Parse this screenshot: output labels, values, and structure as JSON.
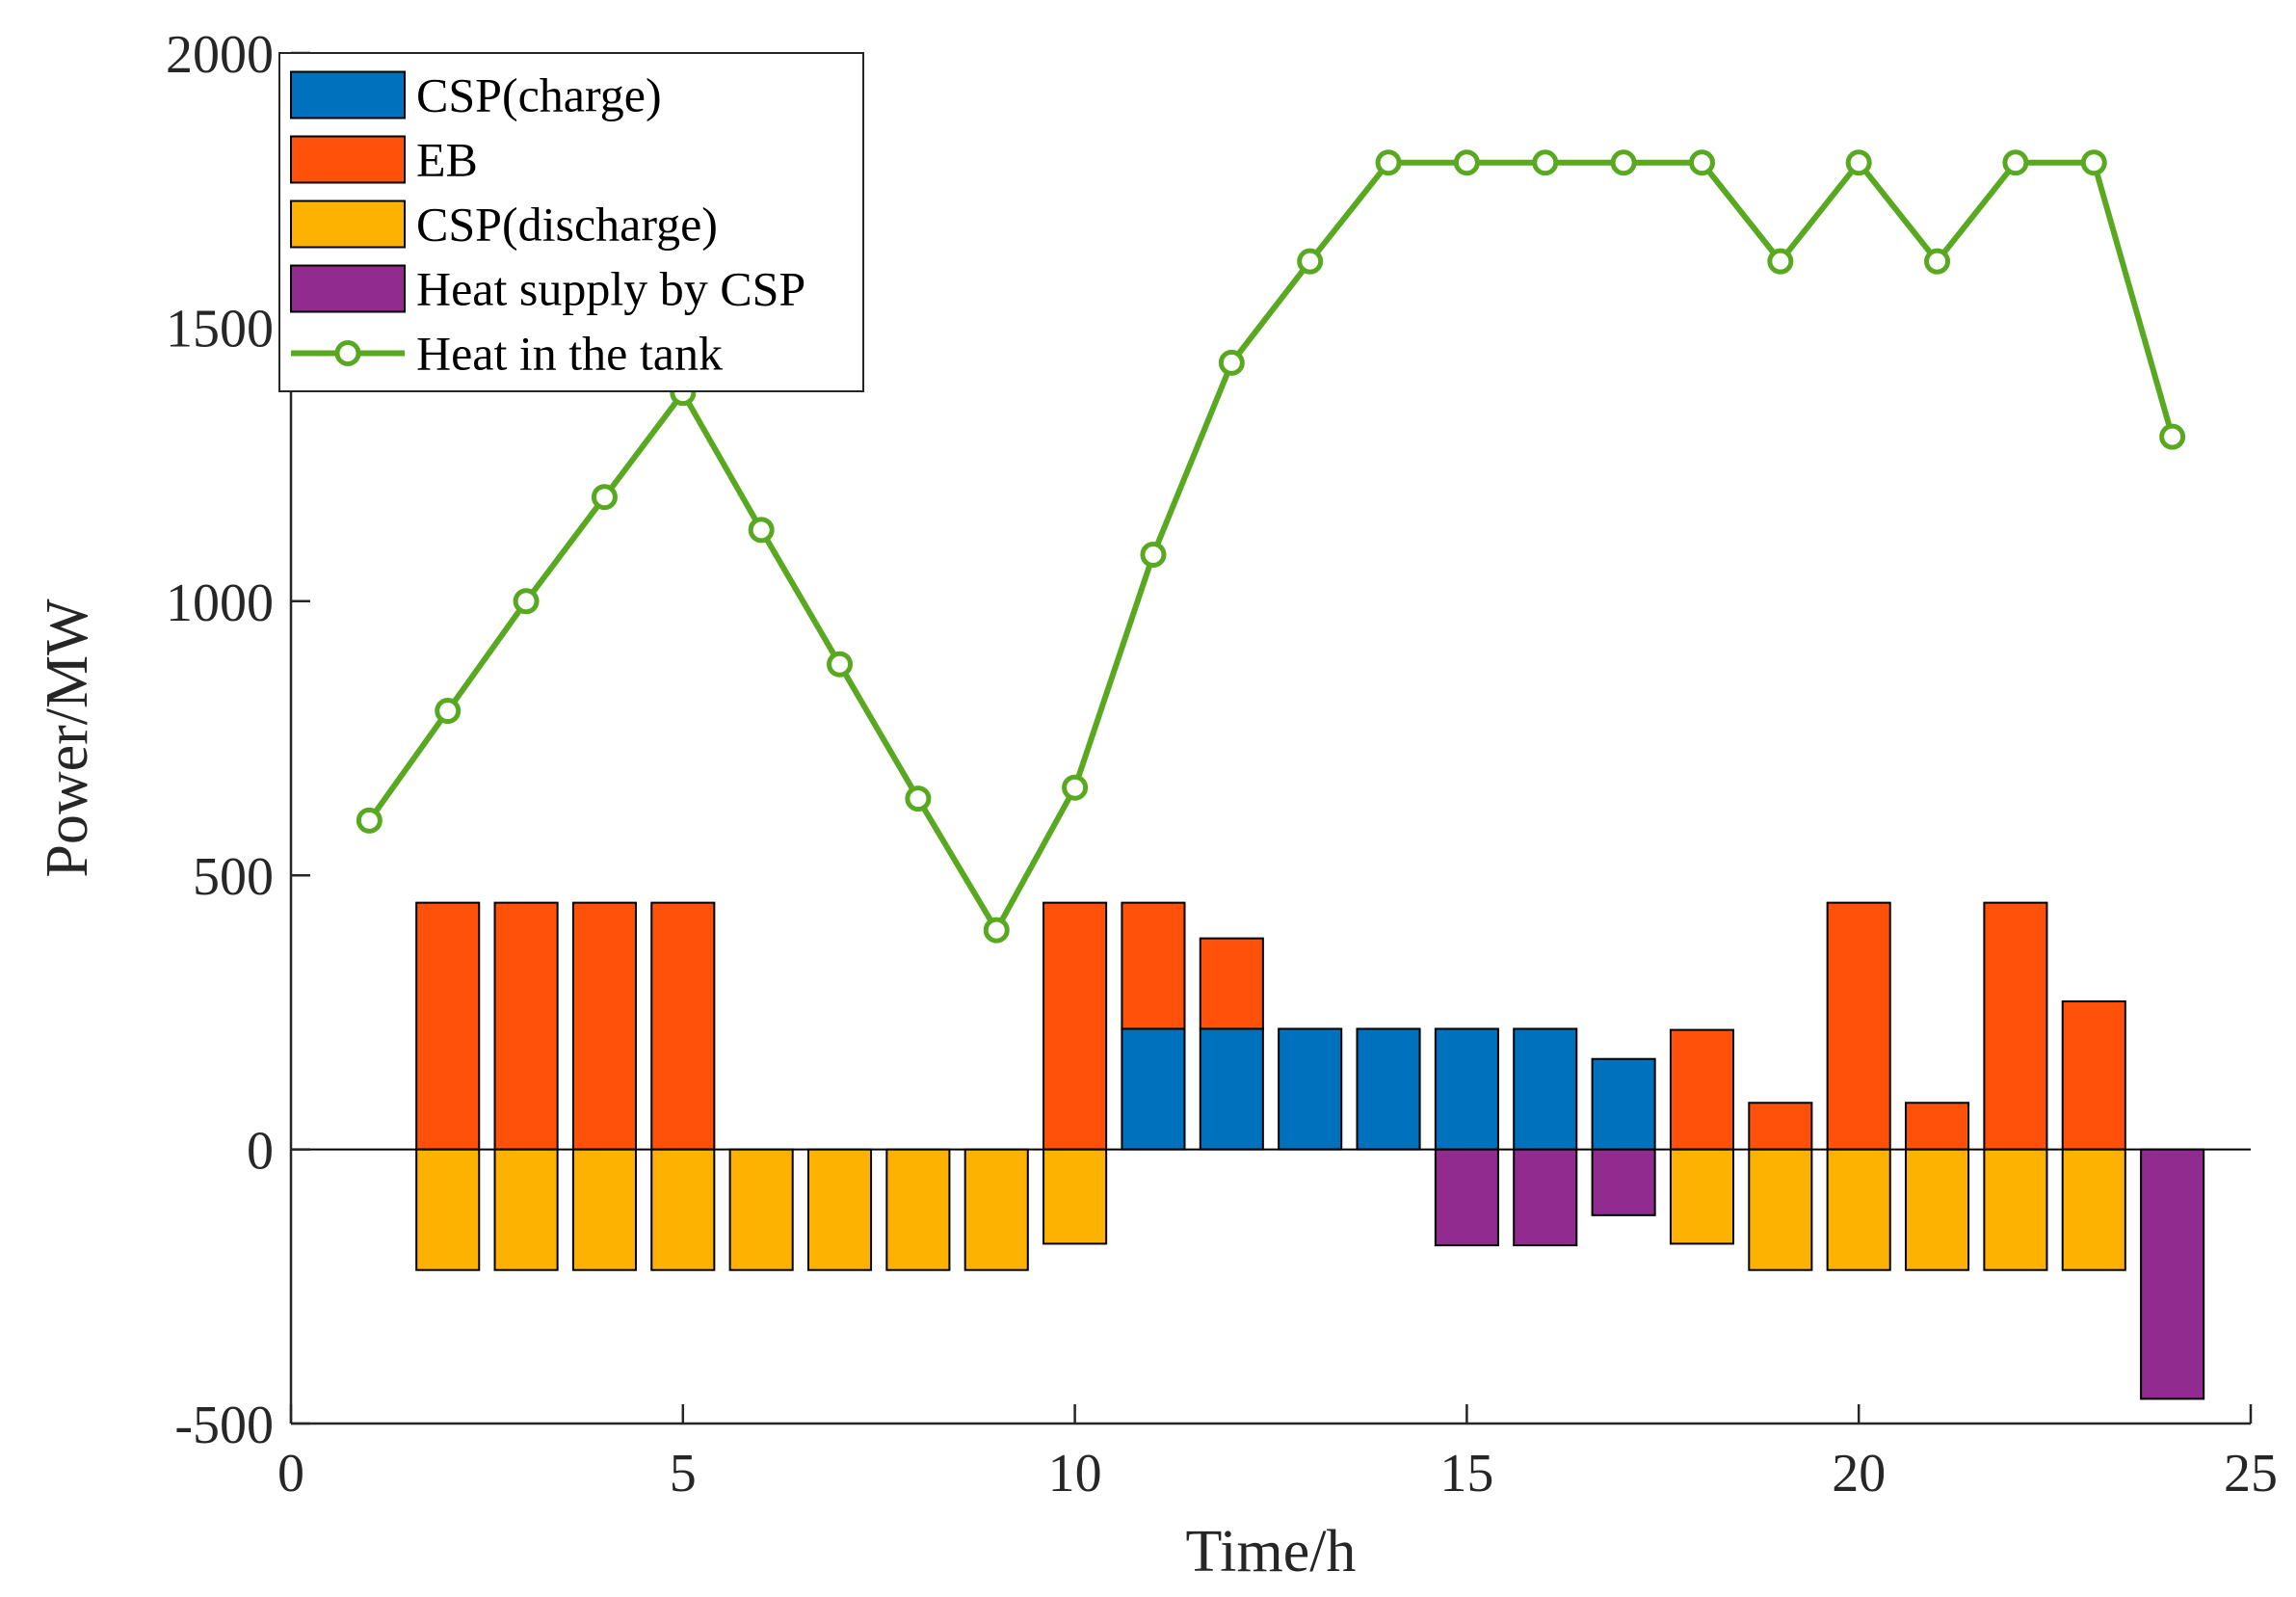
{
  "chart_data": {
    "type": "bar",
    "xlabel": "Time/h",
    "ylabel": "Power/MW",
    "xlim": [
      0,
      25
    ],
    "ylim": [
      -500,
      2000
    ],
    "xticks": [
      0,
      5,
      10,
      15,
      20,
      25
    ],
    "yticks": [
      -500,
      0,
      500,
      1000,
      1500,
      2000
    ],
    "grid": false,
    "legend_position": "top-left",
    "x": [
      1,
      2,
      3,
      4,
      5,
      6,
      7,
      8,
      9,
      10,
      11,
      12,
      13,
      14,
      15,
      16,
      17,
      18,
      19,
      20,
      21,
      22,
      23,
      24
    ],
    "series": [
      {
        "name": "CSP(charge)",
        "type": "bar",
        "color": "#0072BD",
        "values": [
          0,
          0,
          0,
          0,
          0,
          0,
          0,
          0,
          0,
          0,
          220,
          220,
          220,
          220,
          220,
          220,
          165,
          0,
          0,
          0,
          0,
          0,
          0,
          0
        ]
      },
      {
        "name": "EB",
        "type": "bar",
        "color": "#FF5109",
        "values": [
          0,
          450,
          450,
          450,
          450,
          0,
          0,
          0,
          0,
          450,
          230,
          165,
          0,
          0,
          0,
          0,
          0,
          218,
          85,
          450,
          85,
          450,
          270,
          0
        ]
      },
      {
        "name": "CSP(discharge)",
        "type": "bar",
        "color": "#FDB100",
        "values": [
          0,
          -220,
          -220,
          -220,
          -220,
          -220,
          -220,
          -220,
          -220,
          -172,
          0,
          0,
          0,
          0,
          0,
          0,
          0,
          -172,
          -220,
          -220,
          -220,
          -220,
          -220,
          0
        ]
      },
      {
        "name": "Heat supply by CSP",
        "type": "bar",
        "color": "#922B8F",
        "values": [
          0,
          0,
          0,
          0,
          0,
          0,
          0,
          0,
          0,
          0,
          0,
          0,
          0,
          0,
          -175,
          -175,
          -120,
          0,
          0,
          0,
          0,
          0,
          0,
          -455
        ]
      },
      {
        "name": "Heat in the tank",
        "type": "line",
        "color": "#58A820",
        "values": [
          600,
          800,
          1000,
          1190,
          1380,
          1130,
          885,
          640,
          400,
          660,
          1085,
          1435,
          1620,
          1800,
          1800,
          1800,
          1800,
          1800,
          1620,
          1800,
          1620,
          1800,
          1800,
          1300
        ]
      }
    ]
  }
}
